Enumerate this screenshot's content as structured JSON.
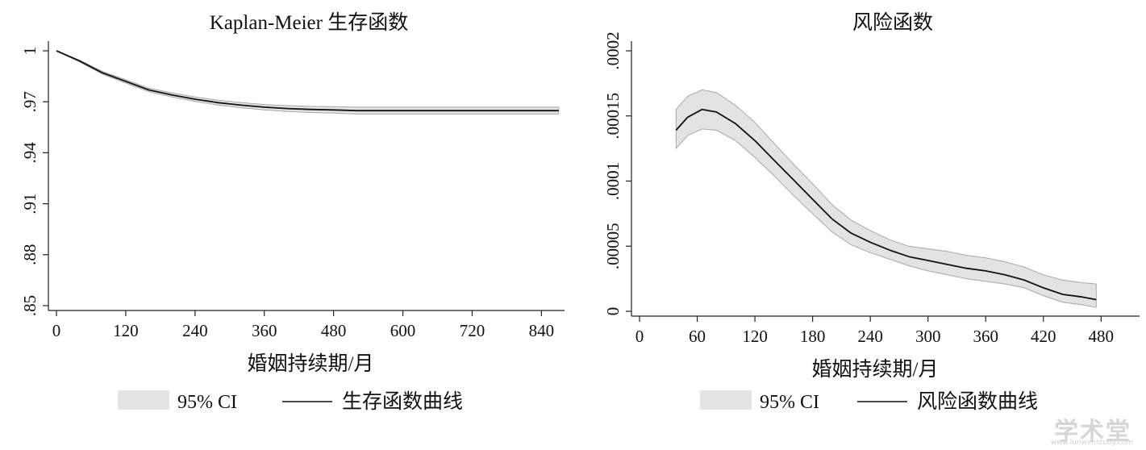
{
  "chart_data": [
    {
      "type": "line",
      "title": "Kaplan-Meier 生存函数",
      "xlabel": "婚姻持续期/月",
      "ylabel": "",
      "xlim": [
        0,
        880
      ],
      "ylim": [
        0.85,
        1.0
      ],
      "xticks": [
        0,
        120,
        240,
        360,
        480,
        600,
        720,
        840
      ],
      "yticks": [
        0.85,
        0.88,
        0.91,
        0.94,
        0.97,
        1.0
      ],
      "ytick_labels": [
        ".85",
        ".88",
        ".91",
        ".94",
        ".97",
        "1"
      ],
      "grid": false,
      "legend": {
        "position": "bottom",
        "ci_label": "95% CI",
        "line_label": "生存函数曲线"
      },
      "series": [
        {
          "role": "estimate",
          "x": [
            0,
            40,
            80,
            120,
            160,
            200,
            240,
            280,
            320,
            360,
            400,
            440,
            480,
            520,
            600,
            700,
            800,
            870
          ],
          "y": [
            1.0,
            0.994,
            0.987,
            0.982,
            0.977,
            0.974,
            0.9715,
            0.9695,
            0.968,
            0.9668,
            0.966,
            0.9655,
            0.9652,
            0.9648,
            0.9648,
            0.9648,
            0.9648,
            0.9648
          ]
        },
        {
          "role": "ci",
          "x": [
            0,
            40,
            80,
            120,
            160,
            200,
            240,
            280,
            320,
            360,
            400,
            440,
            480,
            520,
            600,
            700,
            800,
            870
          ],
          "lower": [
            1.0,
            0.9935,
            0.9862,
            0.981,
            0.976,
            0.9728,
            0.9702,
            0.9681,
            0.9665,
            0.9652,
            0.9643,
            0.9637,
            0.9633,
            0.9628,
            0.9628,
            0.9628,
            0.9628,
            0.9628
          ],
          "upper": [
            1.0,
            0.9945,
            0.9878,
            0.983,
            0.978,
            0.9752,
            0.9728,
            0.9709,
            0.9695,
            0.9684,
            0.9677,
            0.9673,
            0.9671,
            0.9668,
            0.9668,
            0.9668,
            0.9668,
            0.9668
          ]
        }
      ]
    },
    {
      "type": "line",
      "title": "风险函数",
      "xlabel": "婚姻持续期/月",
      "ylabel": "",
      "xlim": [
        0,
        520
      ],
      "ylim": [
        0,
        0.0002
      ],
      "xticks": [
        0,
        60,
        120,
        180,
        240,
        300,
        360,
        420,
        480
      ],
      "yticks": [
        0,
        5e-05,
        0.0001,
        0.00015,
        0.0002
      ],
      "ytick_labels": [
        "0",
        ".00005",
        ".0001",
        ".00015",
        ".0002"
      ],
      "grid": false,
      "legend": {
        "position": "bottom",
        "ci_label": "95% CI",
        "line_label": "风险函数曲线"
      },
      "series": [
        {
          "role": "estimate",
          "x": [
            38,
            50,
            65,
            80,
            100,
            120,
            140,
            160,
            180,
            200,
            220,
            240,
            260,
            280,
            300,
            320,
            340,
            360,
            380,
            400,
            420,
            440,
            460,
            475
          ],
          "y": [
            0.000139,
            0.000149,
            0.000155,
            0.000153,
            0.000144,
            0.000131,
            0.000116,
            0.000101,
            8.6e-05,
            7.1e-05,
            6e-05,
            5.3e-05,
            4.7e-05,
            4.2e-05,
            3.9e-05,
            3.6e-05,
            3.3e-05,
            3.1e-05,
            2.8e-05,
            2.4e-05,
            1.8e-05,
            1.3e-05,
            1.1e-05,
            9e-06
          ]
        },
        {
          "role": "ci",
          "x": [
            38,
            50,
            65,
            80,
            100,
            120,
            140,
            160,
            180,
            200,
            220,
            240,
            260,
            280,
            300,
            320,
            340,
            360,
            380,
            400,
            420,
            440,
            460,
            475
          ],
          "lower": [
            0.000125,
            0.000135,
            0.00014,
            0.000139,
            0.000131,
            0.000118,
            0.000104,
            8.9e-05,
            7.5e-05,
            6.1e-05,
            5.1e-05,
            4.5e-05,
            4e-05,
            3.5e-05,
            3.1e-05,
            2.8e-05,
            2.5e-05,
            2.3e-05,
            2.1e-05,
            1.8e-05,
            1.2e-05,
            7e-06,
            5e-06,
            3e-06
          ],
          "upper": [
            0.000155,
            0.000165,
            0.00017,
            0.000168,
            0.000158,
            0.000145,
            0.000129,
            0.000113,
            9.8e-05,
            8.2e-05,
            7e-05,
            6.2e-05,
            5.5e-05,
            5e-05,
            4.8e-05,
            4.6e-05,
            4.3e-05,
            4.1e-05,
            3.8e-05,
            3.4e-05,
            2.8e-05,
            2.4e-05,
            2.2e-05,
            2.1e-05
          ]
        }
      ]
    }
  ],
  "colors": {
    "line": "#111111",
    "ci_band": "#e3e3e3",
    "ci_edge": "#a8a8a8",
    "axis": "#222222"
  },
  "watermark": {
    "main": "学术堂",
    "sub": "www.lunwenstudy.com"
  }
}
